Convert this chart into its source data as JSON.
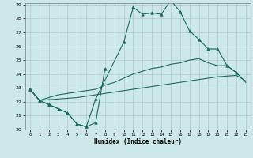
{
  "xlabel": "Humidex (Indice chaleur)",
  "x_values": [
    0,
    1,
    2,
    3,
    4,
    5,
    6,
    7,
    8,
    9,
    10,
    11,
    12,
    13,
    14,
    15,
    16,
    17,
    18,
    19,
    20,
    21,
    22,
    23
  ],
  "line_jagged_x": [
    0,
    1,
    2,
    3,
    4,
    5,
    6,
    7,
    8
  ],
  "line_jagged_y": [
    22.9,
    22.1,
    21.8,
    21.5,
    21.2,
    20.4,
    20.2,
    20.5,
    24.4
  ],
  "line_peak_x": [
    0,
    1,
    2,
    3,
    4,
    5,
    6,
    7,
    10,
    11,
    12,
    13,
    14,
    15,
    16,
    17,
    18,
    19,
    20,
    21,
    22
  ],
  "line_peak_y": [
    22.9,
    22.1,
    21.8,
    21.5,
    21.2,
    20.4,
    20.2,
    22.2,
    26.3,
    28.8,
    28.3,
    28.4,
    28.3,
    29.3,
    28.5,
    27.1,
    26.5,
    25.8,
    25.8,
    24.6,
    24.1
  ],
  "line_lower_x": [
    0,
    1,
    2,
    3,
    4,
    5,
    6,
    7,
    8,
    9,
    10,
    11,
    12,
    13,
    14,
    15,
    16,
    17,
    18,
    19,
    20,
    21,
    22,
    23
  ],
  "line_lower_y": [
    22.9,
    22.1,
    22.15,
    22.2,
    22.25,
    22.3,
    22.4,
    22.5,
    22.6,
    22.7,
    22.8,
    22.9,
    23.0,
    23.1,
    23.2,
    23.3,
    23.4,
    23.5,
    23.6,
    23.7,
    23.8,
    23.85,
    23.9,
    23.5
  ],
  "line_upper_x": [
    0,
    1,
    2,
    3,
    4,
    5,
    6,
    7,
    8,
    9,
    10,
    11,
    12,
    13,
    14,
    15,
    16,
    17,
    18,
    19,
    20,
    21,
    22,
    23
  ],
  "line_upper_y": [
    22.9,
    22.1,
    22.3,
    22.5,
    22.6,
    22.7,
    22.8,
    22.9,
    23.2,
    23.4,
    23.7,
    24.0,
    24.2,
    24.4,
    24.5,
    24.7,
    24.8,
    25.0,
    25.1,
    24.8,
    24.6,
    24.6,
    24.1,
    23.4
  ],
  "line_color": "#1a6b5a",
  "bg_color": "#cce8e8",
  "grid_color": "#b0c8c8",
  "ylim": [
    20,
    29
  ],
  "xlim": [
    -0.5,
    23.5
  ],
  "yticks": [
    20,
    21,
    22,
    23,
    24,
    25,
    26,
    27,
    28,
    29
  ],
  "xticks": [
    0,
    1,
    2,
    3,
    4,
    5,
    6,
    7,
    8,
    9,
    10,
    11,
    12,
    13,
    14,
    15,
    16,
    17,
    18,
    19,
    20,
    21,
    22,
    23
  ]
}
